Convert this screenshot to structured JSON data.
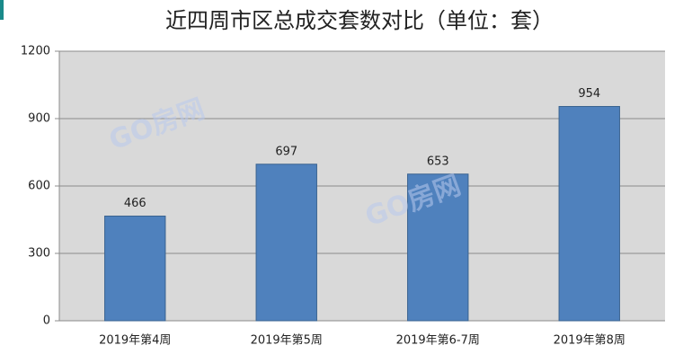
{
  "chart_data": {
    "type": "bar",
    "title": "近四周市区总成交套数对比（单位：套）",
    "categories": [
      "2019年第4周",
      "2019年第5周",
      "2019年第6-7周",
      "2019年第8周"
    ],
    "values": [
      466,
      697,
      653,
      954
    ],
    "color": "#4f81bd",
    "ylim": [
      0,
      1200
    ],
    "yticks": [
      0,
      300,
      600,
      900,
      1200
    ],
    "grid": true,
    "watermark": "GO房网"
  }
}
